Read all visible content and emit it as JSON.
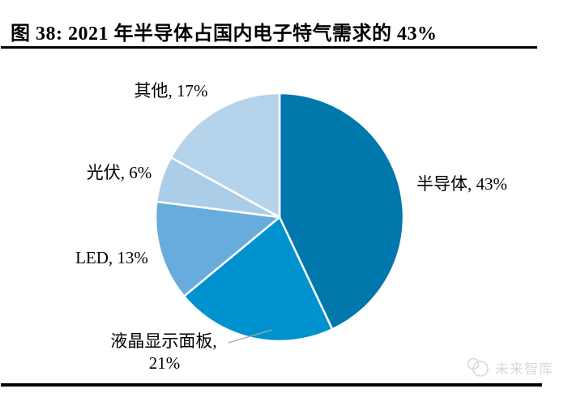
{
  "header": {
    "title": "图 38:  2021 年半导体占国内电子特气需求的 43%"
  },
  "chart_data": {
    "type": "pie",
    "title": "2021 年半导体占国内电子特气需求的 43%",
    "categories": [
      "半导体",
      "液晶显示面板",
      "LED",
      "光伏",
      "其他"
    ],
    "values": [
      43,
      21,
      13,
      6,
      17
    ],
    "unit": "%",
    "colors": [
      "#0078AC",
      "#0092CE",
      "#68ACDD",
      "#ACCDE8",
      "#B5D3EB"
    ],
    "keys": [
      "semiconductor",
      "lcd-panel",
      "led",
      "pv",
      "other"
    ],
    "slice_labels": [
      "半导体, 43%",
      "液晶显示面板, 21%",
      "LED, 13%",
      "光伏, 6%",
      "其他, 17%"
    ],
    "start_angle_deg": 0,
    "direction": "clockwise",
    "legend_position": "none",
    "slice_border_color": "#ffffff"
  },
  "labels": {
    "semiconductor": "半导体, 43%",
    "other": "其他, 17%",
    "pv": "光伏, 6%",
    "led": "LED, 13%",
    "lcd_line1": "液晶显示面板,",
    "lcd_line2": "21%"
  },
  "watermark": {
    "text": "未来智库"
  }
}
